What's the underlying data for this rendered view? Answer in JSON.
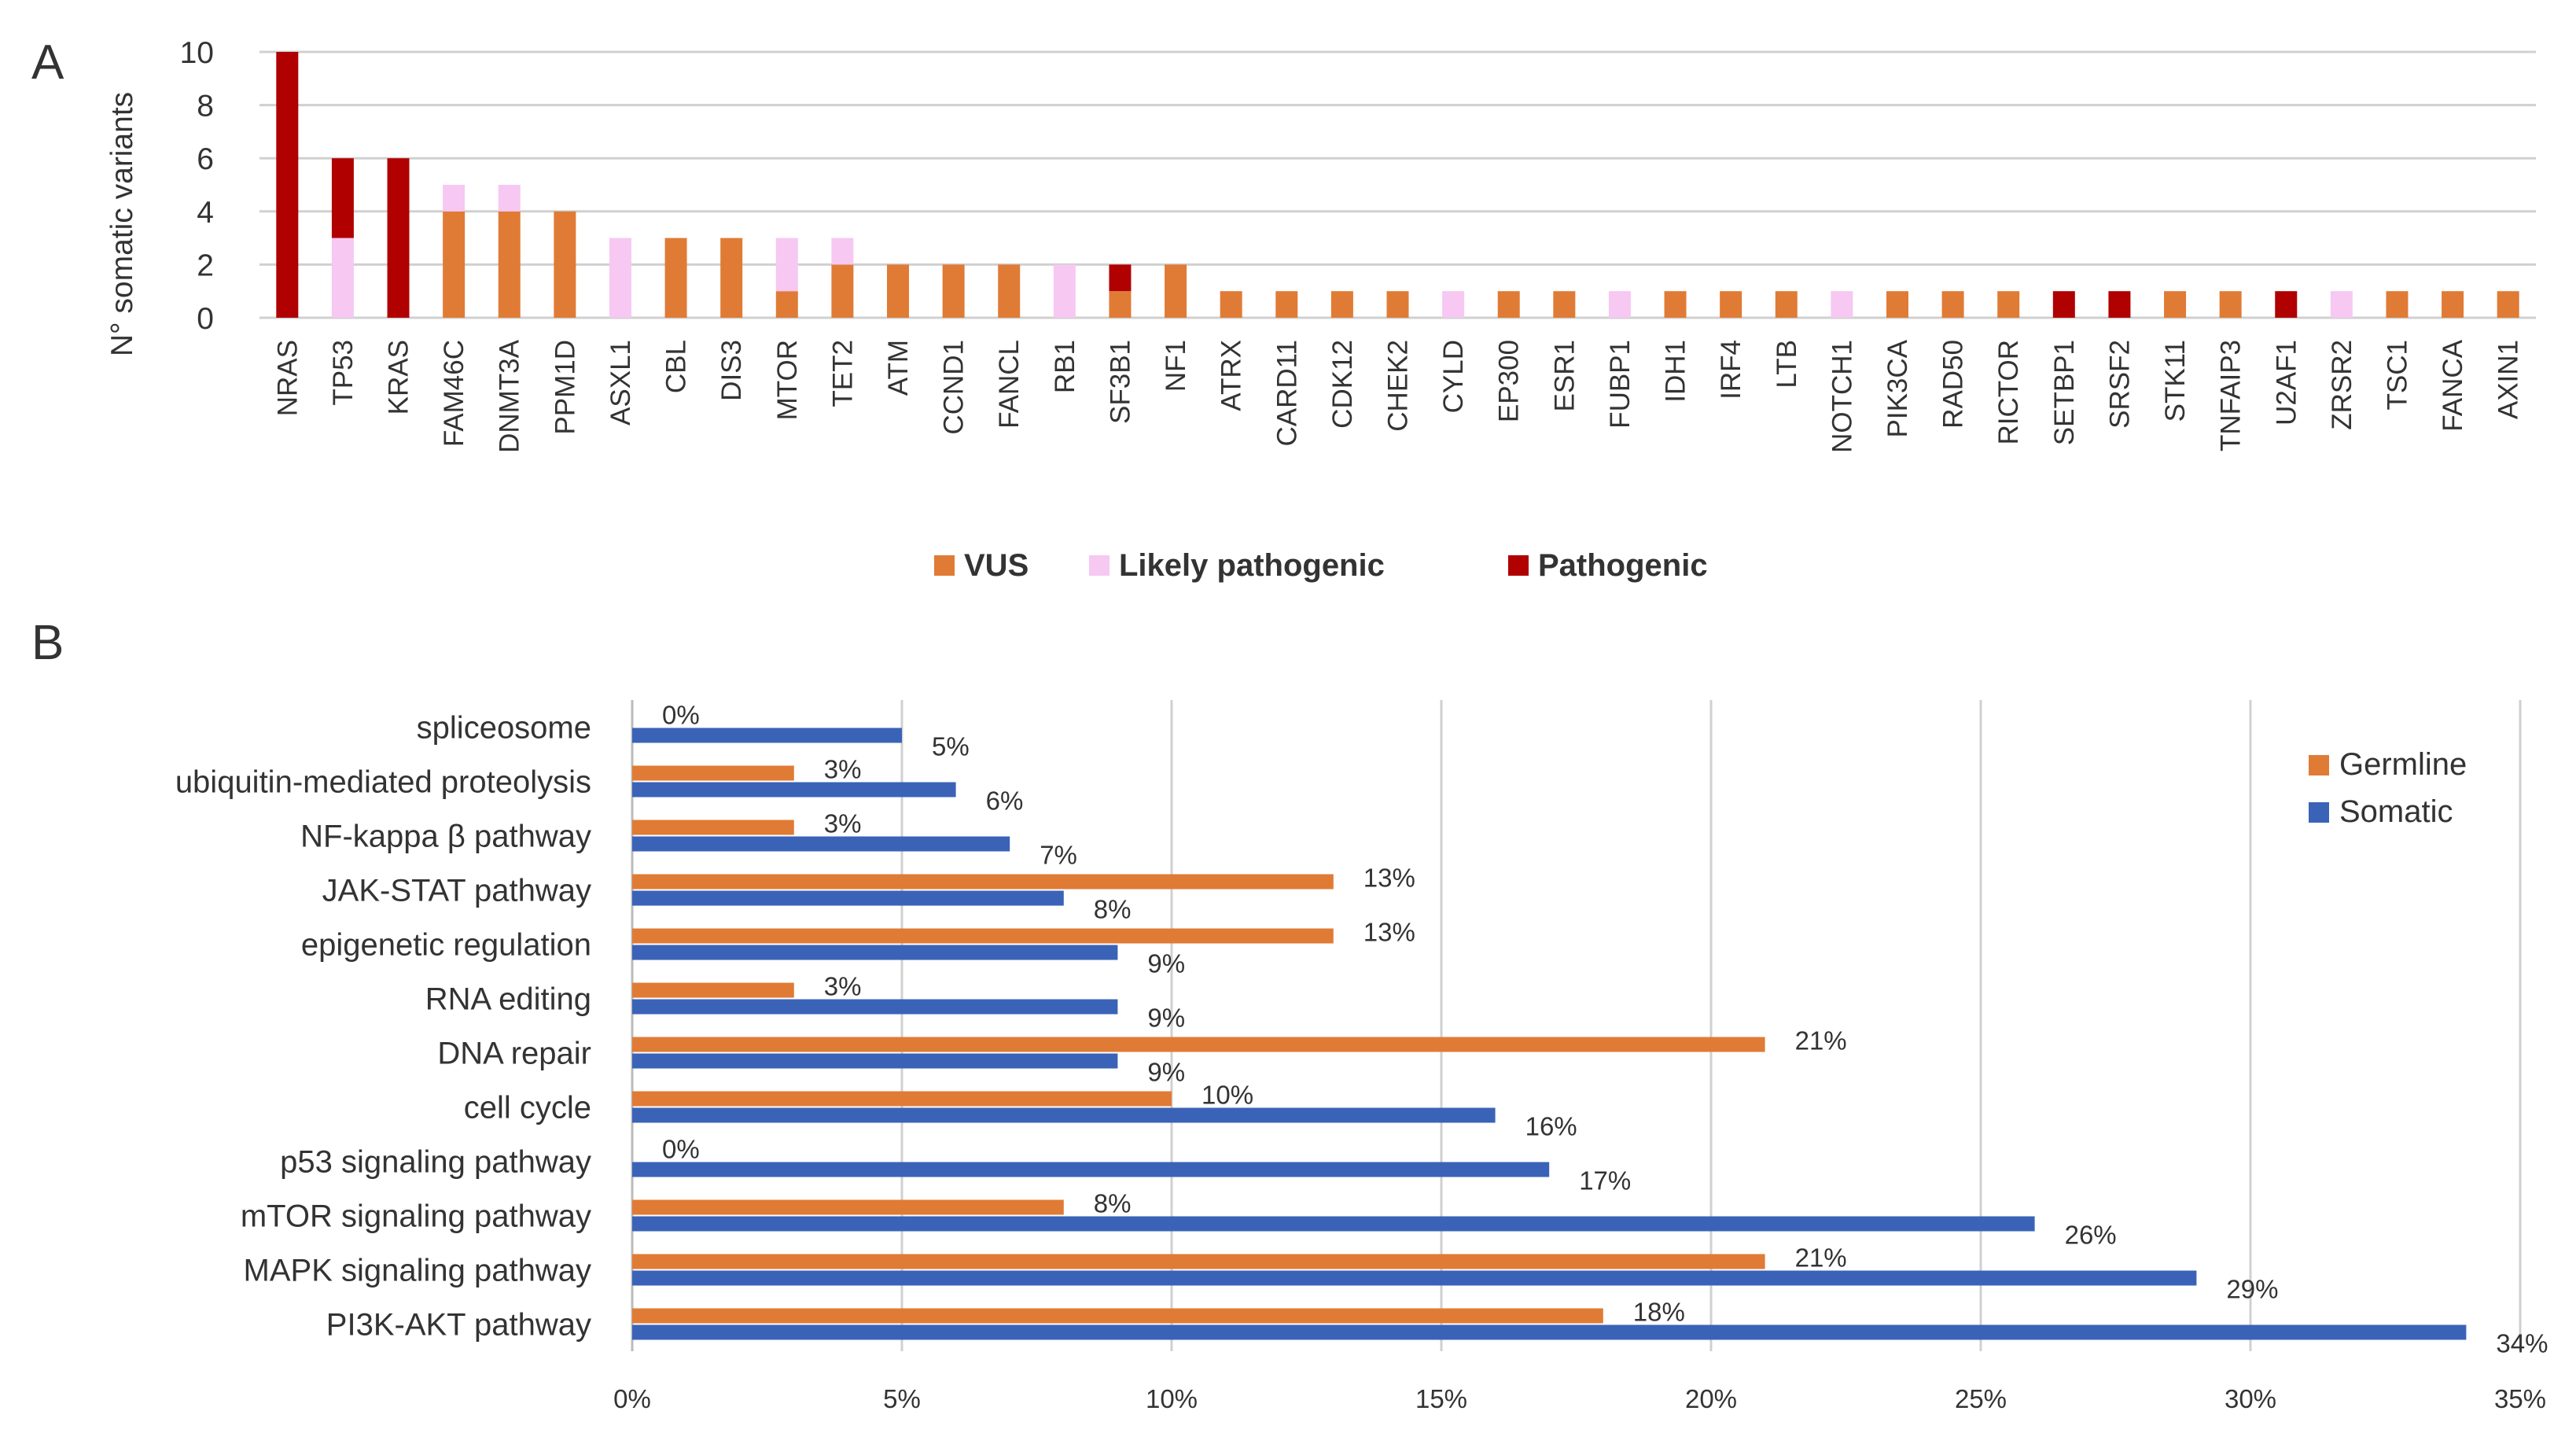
{
  "panels": {
    "a_label": "A",
    "b_label": "B"
  },
  "colors": {
    "vus": "#e07b35",
    "likely_pathogenic": "#f6c8f2",
    "pathogenic": "#b00000",
    "germline": "#e07b35",
    "somatic": "#3a63b8"
  },
  "chart_data": [
    {
      "type": "bar",
      "stacked": true,
      "ylabel": "N° somatic variants",
      "ylim": [
        0,
        10
      ],
      "yticks": [
        "0",
        "2",
        "4",
        "6",
        "8",
        "10"
      ],
      "grid": true,
      "legend_position": "bottom-center",
      "categories": [
        "NRAS",
        "TP53",
        "KRAS",
        "FAM46C",
        "DNMT3A",
        "PPM1D",
        "ASXL1",
        "CBL",
        "DIS3",
        "MTOR",
        "TET2",
        "ATM",
        "CCND1",
        "FANCL",
        "RB1",
        "SF3B1",
        "NF1",
        "ATRX",
        "CARD11",
        "CDK12",
        "CHEK2",
        "CYLD",
        "EP300",
        "ESR1",
        "FUBP1",
        "IDH1",
        "IRF4",
        "LTB",
        "NOTCH1",
        "PIK3CA",
        "RAD50",
        "RICTOR",
        "SETBP1",
        "SRSF2",
        "STK11",
        "TNFAIP3",
        "U2AF1",
        "ZRSR2",
        "TSC1",
        "FANCA",
        "AXIN1"
      ],
      "series": [
        {
          "name": "VUS",
          "values": [
            0,
            0,
            0,
            4,
            4,
            4,
            0,
            3,
            3,
            1,
            2,
            2,
            2,
            2,
            0,
            1,
            2,
            1,
            1,
            1,
            1,
            0,
            1,
            1,
            0,
            1,
            1,
            1,
            0,
            1,
            1,
            1,
            0,
            0,
            1,
            1,
            0,
            0,
            1,
            1,
            1
          ]
        },
        {
          "name": "Likely pathogenic",
          "values": [
            0,
            3,
            0,
            1,
            1,
            0,
            3,
            0,
            0,
            2,
            1,
            0,
            0,
            0,
            2,
            0,
            0,
            0,
            0,
            0,
            0,
            1,
            0,
            0,
            1,
            0,
            0,
            0,
            1,
            0,
            0,
            0,
            0,
            0,
            0,
            0,
            0,
            1,
            0,
            0,
            0
          ]
        },
        {
          "name": "Pathogenic",
          "values": [
            10,
            3,
            6,
            0,
            0,
            0,
            0,
            0,
            0,
            0,
            0,
            0,
            0,
            0,
            0,
            1,
            0,
            0,
            0,
            0,
            0,
            0,
            0,
            0,
            0,
            0,
            0,
            0,
            0,
            0,
            0,
            0,
            1,
            1,
            0,
            0,
            1,
            0,
            0,
            0,
            0
          ]
        }
      ]
    },
    {
      "type": "bar",
      "orientation": "horizontal",
      "xlim": [
        0,
        35
      ],
      "xticks": [
        "0%",
        "5%",
        "10%",
        "15%",
        "20%",
        "25%",
        "30%",
        "35%"
      ],
      "grid": true,
      "legend_position": "top-right",
      "categories": [
        "spliceosome",
        "ubiquitin-mediated proteolysis",
        "NF-kappa β pathway",
        "JAK-STAT pathway",
        "epigenetic regulation",
        "RNA editing",
        "DNA repair",
        "cell cycle",
        "p53 signaling pathway",
        "mTOR signaling pathway",
        "MAPK signaling pathway",
        "PI3K-AKT pathway"
      ],
      "series": [
        {
          "name": "Germline",
          "values": [
            0,
            3,
            3,
            13,
            13,
            3,
            21,
            10,
            0,
            8,
            21,
            18
          ],
          "labels": [
            "0%",
            "3%",
            "3%",
            "13%",
            "13%",
            "3%",
            "21%",
            "10%",
            "0%",
            "8%",
            "21%",
            "18%"
          ]
        },
        {
          "name": "Somatic",
          "values": [
            5,
            6,
            7,
            8,
            9,
            9,
            9,
            16,
            17,
            26,
            29,
            34
          ],
          "labels": [
            "5%",
            "6%",
            "7%",
            "8%",
            "9%",
            "9%",
            "9%",
            "16%",
            "17%",
            "26%",
            "29%",
            "34%"
          ]
        }
      ]
    }
  ]
}
